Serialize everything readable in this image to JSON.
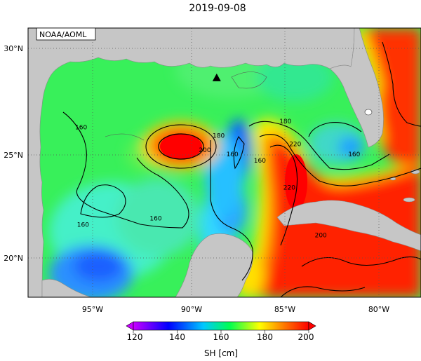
{
  "title": "2019-09-08",
  "agency_label": "NOAA/AOML",
  "colorbar": {
    "label": "SH [cm]",
    "min": 120,
    "max": 200,
    "ticks": [
      "120",
      "140",
      "160",
      "180",
      "200"
    ],
    "colors": [
      "#c800ff",
      "#0000ff",
      "#00c8ff",
      "#00ff50",
      "#ffff00",
      "#ff7800",
      "#ff0000"
    ]
  },
  "axes": {
    "lat_labels": [
      "30°N",
      "25°N",
      "20°N"
    ],
    "lon_labels": [
      "95°W",
      "90°W",
      "85°W",
      "80°W"
    ],
    "lon_range": [
      -98,
      -78
    ],
    "lat_range": [
      18,
      31
    ]
  },
  "contour_labels": [
    {
      "text": "160",
      "lon": -95.3,
      "lat": 26.1
    },
    {
      "text": "200",
      "lon": -89.0,
      "lat": 25.0
    },
    {
      "text": "180",
      "lon": -88.3,
      "lat": 25.7
    },
    {
      "text": "160",
      "lon": -87.6,
      "lat": 24.8
    },
    {
      "text": "160",
      "lon": -86.2,
      "lat": 24.5
    },
    {
      "text": "180",
      "lon": -84.9,
      "lat": 26.4
    },
    {
      "text": "220",
      "lon": -84.4,
      "lat": 25.3
    },
    {
      "text": "220",
      "lon": -84.7,
      "lat": 23.2
    },
    {
      "text": "160",
      "lon": -81.4,
      "lat": 24.8
    },
    {
      "text": "160",
      "lon": -95.2,
      "lat": 21.4
    },
    {
      "text": "160",
      "lon": -91.5,
      "lat": 21.7
    },
    {
      "text": "200",
      "lon": -83.1,
      "lat": 20.9
    }
  ],
  "marker": {
    "shape": "triangle",
    "lon": -88.4,
    "lat": 28.6
  }
}
